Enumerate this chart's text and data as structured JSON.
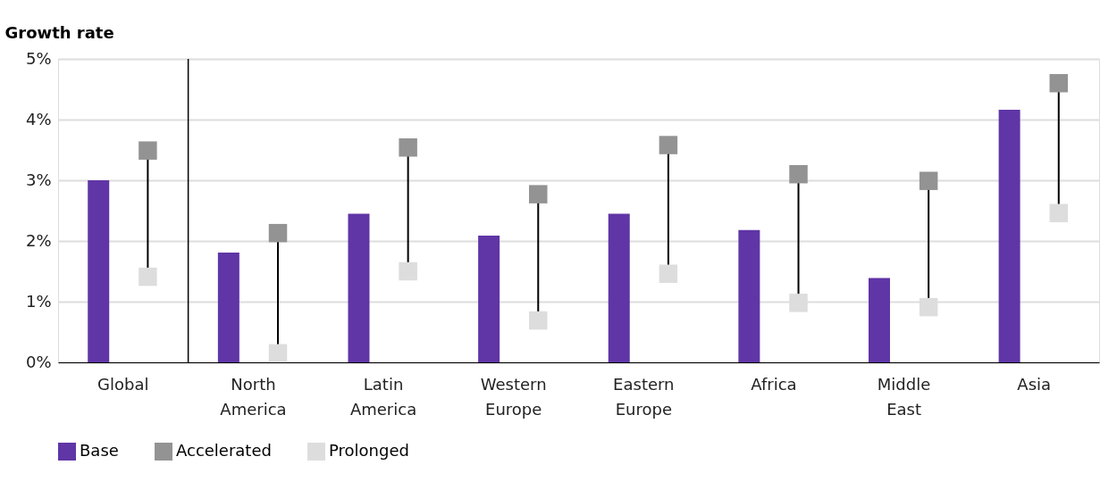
{
  "chart_data": {
    "type": "bar",
    "ylabel": "Growth rate",
    "categories": [
      "Global",
      "North America",
      "Latin America",
      "Western Europe",
      "Eastern Europe",
      "Africa",
      "Middle East",
      "Asia"
    ],
    "series": [
      {
        "name": "Base",
        "color": "#6035a6",
        "values": [
          3.0,
          1.81,
          2.45,
          2.09,
          2.45,
          2.18,
          1.39,
          4.16
        ]
      },
      {
        "name": "Accelerated",
        "type": "scatter",
        "marker": "square",
        "color": "#939393",
        "values": [
          3.49,
          2.13,
          3.54,
          2.77,
          3.58,
          3.1,
          2.99,
          4.6
        ]
      },
      {
        "name": "Prolonged",
        "type": "scatter",
        "marker": "square",
        "color": "#dddddd",
        "values": [
          1.41,
          0.15,
          1.5,
          0.69,
          1.46,
          0.98,
          0.91,
          2.46
        ]
      }
    ],
    "ylim": [
      0,
      5
    ],
    "yticks": [
      {
        "value": 0,
        "label": "0%"
      },
      {
        "value": 1,
        "label": "1%"
      },
      {
        "value": 2,
        "label": "2%"
      },
      {
        "value": 3,
        "label": "3%"
      },
      {
        "value": 4,
        "label": "4%"
      },
      {
        "value": 5,
        "label": "5%"
      }
    ],
    "ref_lines": [
      {
        "axis": "x",
        "value": "Global",
        "color": "#000000"
      }
    ],
    "grid": "y",
    "legend": "bottom left"
  }
}
